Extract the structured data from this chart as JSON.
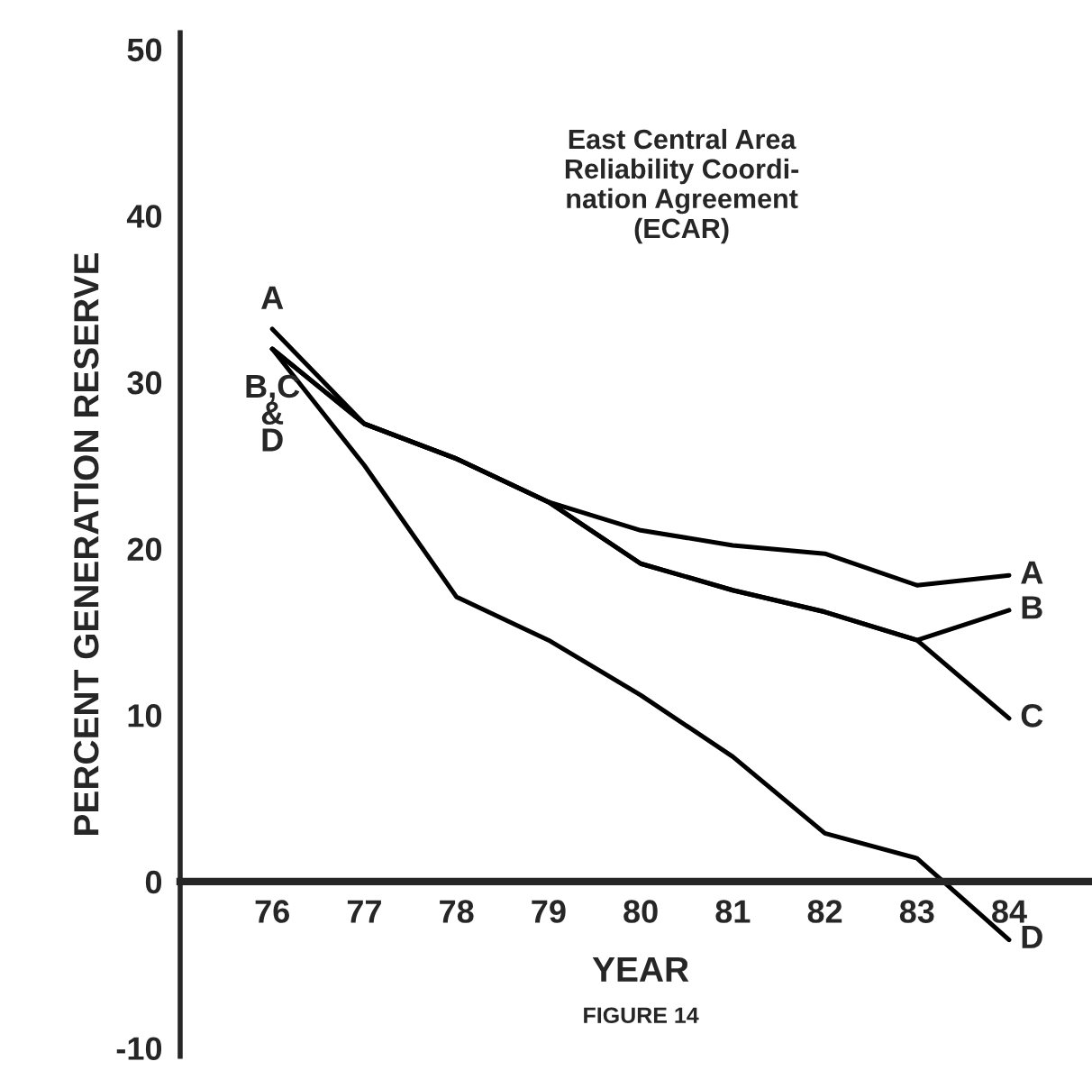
{
  "chart_data": {
    "type": "line",
    "title": "East Central Area\nReliability Coordi-\nnation Agreement\n(ECAR)",
    "xlabel": "YEAR",
    "ylabel": "PERCENT GENERATION RESERVE",
    "x": [
      76,
      77,
      78,
      79,
      80,
      81,
      82,
      83,
      84
    ],
    "series": [
      {
        "name": "A",
        "color": "#000000",
        "values": [
          33.2,
          27.5,
          25.4,
          22.8,
          21.1,
          20.2,
          19.7,
          17.8,
          18.4
        ]
      },
      {
        "name": "B",
        "color": "#000000",
        "values": [
          32,
          27.5,
          25.4,
          22.8,
          19.1,
          17.5,
          16.2,
          14.5,
          16.3
        ]
      },
      {
        "name": "C",
        "color": "#000000",
        "values": [
          32,
          27.5,
          25.4,
          22.8,
          19.1,
          17.5,
          16.2,
          14.5,
          9.8
        ]
      },
      {
        "name": "D",
        "color": "#000000",
        "values": [
          32,
          25,
          17.1,
          14.5,
          11.2,
          7.5,
          2.9,
          1.4,
          -3.5
        ]
      }
    ],
    "annotations": [
      {
        "text": "A",
        "x": 76,
        "y": 33.2
      },
      {
        "text": "B,C\n&\nD",
        "x": 76,
        "y": 32
      },
      "FIGURE 14"
    ],
    "xlim": [
      75,
      84.9
    ],
    "ylim": [
      -10.5,
      51
    ],
    "xticks": [
      76,
      77,
      78,
      79,
      80,
      81,
      82,
      83,
      84
    ],
    "yticks": [
      -10,
      0,
      10,
      20,
      30,
      40,
      50
    ],
    "grid": false,
    "legend": false,
    "marker": "none",
    "line_style": "solid"
  }
}
